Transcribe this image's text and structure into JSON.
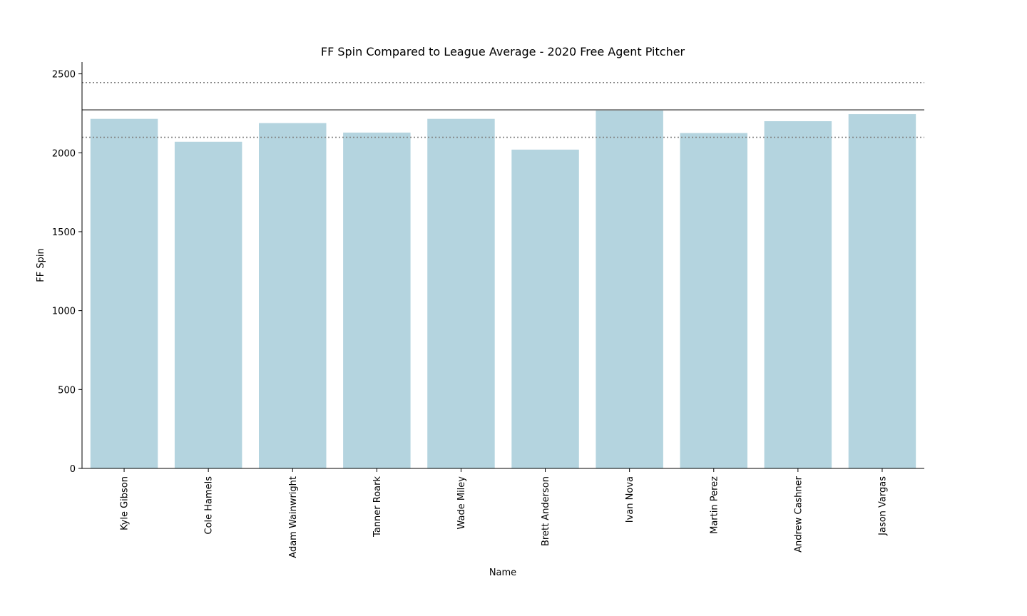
{
  "chart_data": {
    "type": "bar",
    "title": "FF Spin Compared to League Average - 2020 Free Agent Pitcher",
    "xlabel": "Name",
    "ylabel": "FF Spin",
    "categories": [
      "Kyle Gibson",
      "Cole Hamels",
      "Adam Wainwright",
      "Tanner Roark",
      "Wade Miley",
      "Brett Anderson",
      "Ivan Nova",
      "Martin Perez",
      "Andrew Cashner",
      "Jason Vargas"
    ],
    "values": [
      2215,
      2070,
      2188,
      2128,
      2215,
      2020,
      2272,
      2125,
      2200,
      2245
    ],
    "ylim": [
      0,
      2575
    ],
    "yticks": [
      0,
      500,
      1000,
      1500,
      2000,
      2500
    ],
    "reference_lines": [
      {
        "value": 2272,
        "style": "solid"
      },
      {
        "value": 2445,
        "style": "dotted"
      },
      {
        "value": 2098,
        "style": "dotted"
      }
    ],
    "grid": false,
    "colors": {
      "bar": "#b4d4df",
      "reference_line": "#808080",
      "axis": "#000000"
    }
  }
}
